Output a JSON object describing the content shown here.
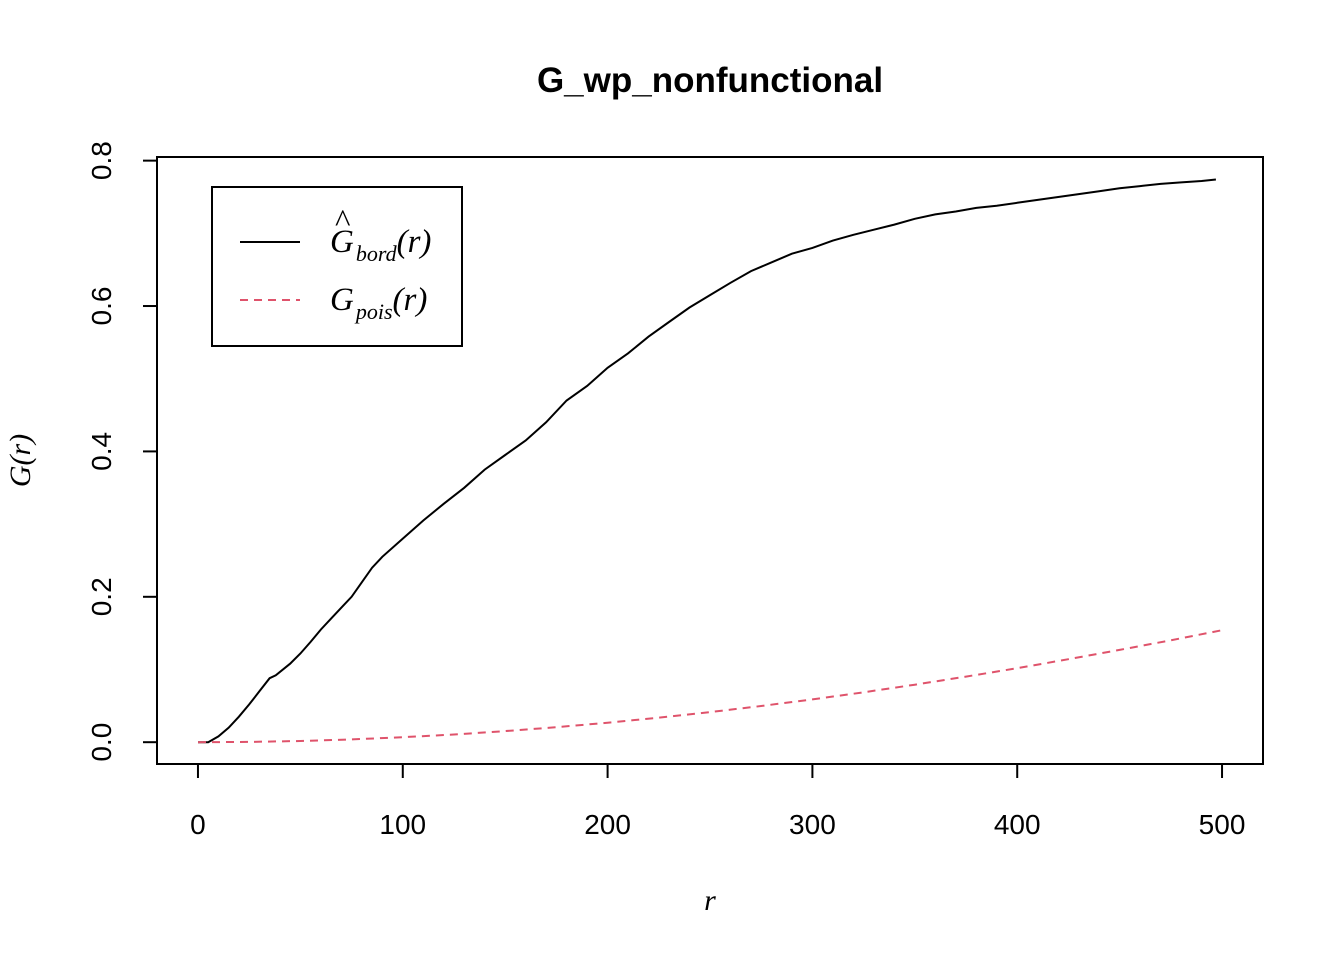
{
  "chart_data": {
    "type": "line",
    "title": "G_wp_nonfunctional",
    "xlabel": "r",
    "ylabel": "G(r)",
    "xlim": [
      -20,
      520
    ],
    "ylim": [
      -0.03,
      0.805
    ],
    "xticks": [
      0,
      100,
      200,
      300,
      400,
      500
    ],
    "xtick_labels": [
      "0",
      "100",
      "200",
      "300",
      "400",
      "500"
    ],
    "yticks": [
      0.0,
      0.2,
      0.4,
      0.6,
      0.8
    ],
    "ytick_labels": [
      "0.0",
      "0.2",
      "0.4",
      "0.6",
      "0.8"
    ],
    "grid": false,
    "legend_position": "top-left",
    "series": [
      {
        "name": "Ĝbord(r)",
        "legend_main": "G",
        "legend_hat": "^",
        "legend_sub": "bord",
        "legend_arg": "(r)",
        "color": "#000000",
        "dash": "solid",
        "x": [
          0,
          5,
          10,
          15,
          20,
          25,
          30,
          35,
          38,
          45,
          50,
          55,
          60,
          65,
          70,
          75,
          80,
          85,
          90,
          100,
          110,
          120,
          130,
          140,
          150,
          160,
          170,
          180,
          190,
          200,
          210,
          220,
          230,
          240,
          250,
          260,
          270,
          280,
          290,
          300,
          310,
          320,
          330,
          340,
          350,
          360,
          370,
          380,
          390,
          400,
          410,
          420,
          430,
          440,
          450,
          460,
          470,
          480,
          490,
          497
        ],
        "y": [
          0.0,
          0.0,
          0.008,
          0.02,
          0.035,
          0.052,
          0.07,
          0.088,
          0.092,
          0.108,
          0.122,
          0.138,
          0.155,
          0.17,
          0.185,
          0.2,
          0.22,
          0.24,
          0.255,
          0.28,
          0.305,
          0.328,
          0.35,
          0.375,
          0.395,
          0.415,
          0.44,
          0.47,
          0.49,
          0.515,
          0.535,
          0.558,
          0.578,
          0.598,
          0.615,
          0.632,
          0.648,
          0.66,
          0.672,
          0.68,
          0.69,
          0.698,
          0.705,
          0.712,
          0.72,
          0.726,
          0.73,
          0.735,
          0.738,
          0.742,
          0.746,
          0.75,
          0.754,
          0.758,
          0.762,
          0.765,
          0.768,
          0.77,
          0.772,
          0.774
        ]
      },
      {
        "name": "Gpois(r)",
        "legend_main": "G",
        "legend_sub": "pois",
        "legend_arg": "(r)",
        "color": "#DF536B",
        "dash": "dashed",
        "x": [
          0,
          25,
          50,
          75,
          100,
          125,
          150,
          175,
          200,
          225,
          250,
          275,
          300,
          325,
          350,
          375,
          400,
          425,
          450,
          475,
          500
        ],
        "y": [
          0.0,
          0.0004,
          0.0017,
          0.0038,
          0.0068,
          0.0106,
          0.0152,
          0.0206,
          0.0268,
          0.0337,
          0.0414,
          0.0498,
          0.0589,
          0.0687,
          0.0791,
          0.0902,
          0.1018,
          0.1141,
          0.1269,
          0.1402,
          0.154
        ]
      }
    ]
  }
}
